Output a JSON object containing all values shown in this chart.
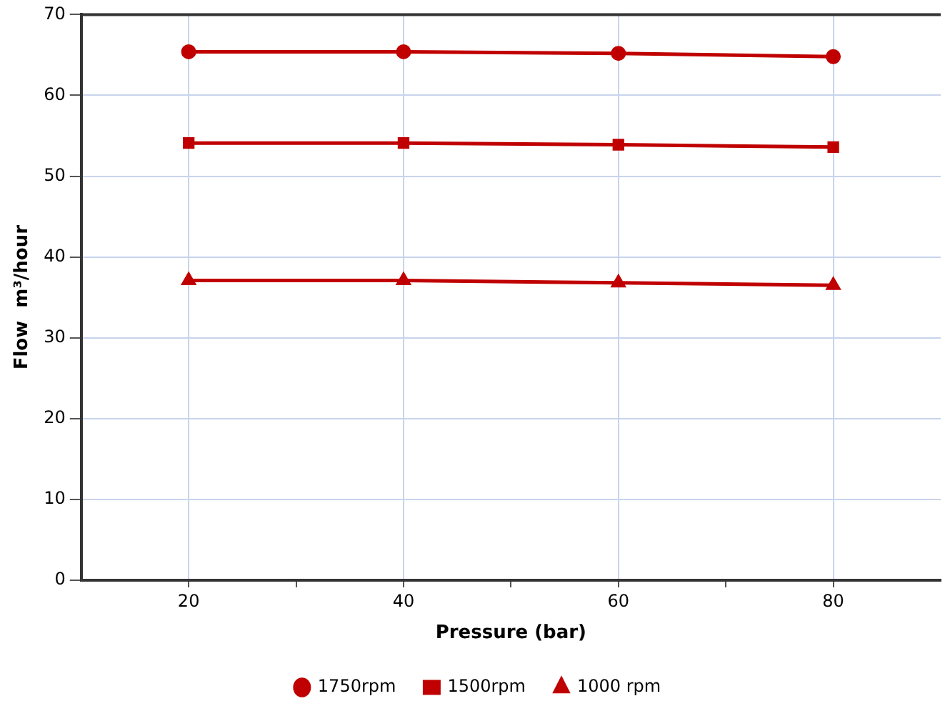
{
  "chart_data": {
    "type": "line",
    "xlabel": "Pressure (bar)",
    "ylabel": "Flow  m³/hour",
    "x": [
      20,
      40,
      60,
      80
    ],
    "series": [
      {
        "name": "1750rpm",
        "color": "#c00000",
        "marker": "circle",
        "values": [
          65.4,
          65.4,
          65.2,
          64.8
        ]
      },
      {
        "name": "1500rpm",
        "color": "#c00000",
        "marker": "square",
        "values": [
          54.1,
          54.1,
          53.9,
          53.6
        ]
      },
      {
        "name": "1000 rpm",
        "color": "#c00000",
        "marker": "triangle",
        "values": [
          37.1,
          37.1,
          36.8,
          36.5
        ]
      }
    ],
    "xlim": [
      10,
      90
    ],
    "xticks": [
      20,
      {
        "value": 30,
        "label": null
      },
      40,
      {
        "value": 50,
        "label": null
      },
      60,
      {
        "value": 70,
        "label": null
      },
      80
    ],
    "ylim": [
      0,
      70
    ],
    "yticks": [
      0,
      10,
      20,
      30,
      40,
      50,
      60,
      70
    ],
    "grid": true,
    "legend": "bottom",
    "line_style": "solid"
  }
}
